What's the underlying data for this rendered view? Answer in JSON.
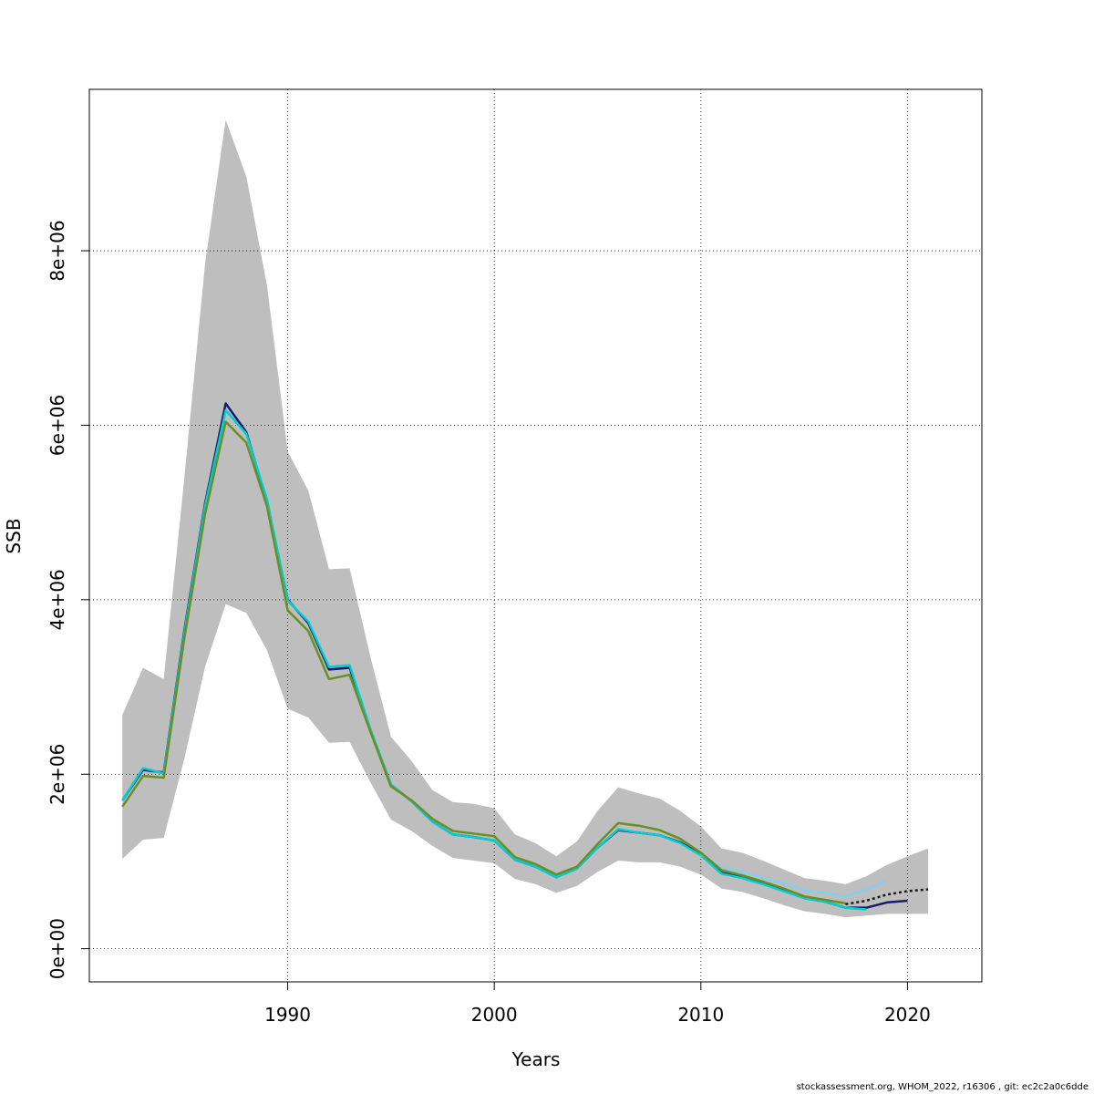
{
  "chart_data": {
    "type": "line",
    "xlabel": "Years",
    "ylabel": "SSB",
    "xlim": [
      1980.4,
      2023.6
    ],
    "ylim": [
      -380000,
      9850000
    ],
    "x_ticks": [
      1990,
      2000,
      2010,
      2020
    ],
    "x_tick_labels": [
      "1990",
      "2000",
      "2010",
      "2020"
    ],
    "y_ticks": [
      0,
      2000000,
      4000000,
      6000000,
      8000000
    ],
    "y_tick_labels": [
      "0e+00",
      "2e+06",
      "4e+06",
      "6e+06",
      "8e+06"
    ],
    "grid": true,
    "band": {
      "years": [
        1982,
        1983,
        1984,
        1985,
        1986,
        1987,
        1988,
        1989,
        1990,
        1991,
        1992,
        1993,
        1994,
        1995,
        1996,
        1997,
        1998,
        1999,
        2000,
        2001,
        2002,
        2003,
        2004,
        2005,
        2006,
        2007,
        2008,
        2009,
        2010,
        2011,
        2012,
        2013,
        2014,
        2015,
        2016,
        2017,
        2018,
        2019,
        2020,
        2021
      ],
      "upper": [
        2680000,
        3220000,
        3090000,
        5400000,
        7850000,
        9500000,
        8850000,
        7600000,
        5700000,
        5250000,
        4350000,
        4360000,
        3350000,
        2430000,
        2150000,
        1820000,
        1680000,
        1660000,
        1610000,
        1310000,
        1210000,
        1060000,
        1230000,
        1580000,
        1850000,
        1780000,
        1720000,
        1580000,
        1400000,
        1150000,
        1100000,
        1010000,
        910000,
        810000,
        780000,
        740000,
        830000,
        960000,
        1060000,
        1150000
      ],
      "lower": [
        1030000,
        1250000,
        1270000,
        2180000,
        3230000,
        3950000,
        3850000,
        3420000,
        2750000,
        2650000,
        2360000,
        2370000,
        1910000,
        1480000,
        1350000,
        1180000,
        1040000,
        1010000,
        980000,
        800000,
        740000,
        640000,
        720000,
        880000,
        1010000,
        990000,
        990000,
        940000,
        850000,
        690000,
        650000,
        580000,
        500000,
        430000,
        400000,
        360000,
        380000,
        400000,
        400000,
        400000
      ]
    },
    "band_color": "#bebebe",
    "series": [
      {
        "color": "#191970",
        "years": [
          1982,
          1983,
          1984,
          1985,
          1986,
          1987,
          1988,
          1989,
          1990,
          1991,
          1992,
          1993,
          1994,
          1995,
          1996,
          1997,
          1998,
          1999,
          2000,
          2001,
          2002,
          2003,
          2004,
          2005,
          2006,
          2007,
          2008,
          2009,
          2010,
          2011,
          2012,
          2013,
          2014,
          2015,
          2016,
          2017,
          2018,
          2019,
          2020
        ],
        "values": [
          1700000,
          2050000,
          2020000,
          3650000,
          5100000,
          6250000,
          5920000,
          5120000,
          4000000,
          3730000,
          3200000,
          3220000,
          2510000,
          1880000,
          1690000,
          1460000,
          1310000,
          1280000,
          1240000,
          1020000,
          940000,
          820000,
          920000,
          1160000,
          1360000,
          1330000,
          1300000,
          1220000,
          1080000,
          870000,
          820000,
          750000,
          670000,
          580000,
          540000,
          470000,
          470000,
          530000,
          550000
        ]
      },
      {
        "color": "#00ced1",
        "years": [
          1982,
          1983,
          1984,
          1985,
          1986,
          1987,
          1988,
          1989,
          1990,
          1991,
          1992,
          1993,
          1994,
          1995,
          1996,
          1997,
          1998,
          1999,
          2000,
          2001,
          2002,
          2003,
          2004,
          2005,
          2006,
          2007,
          2008,
          2009,
          2010,
          2011,
          2012,
          2013,
          2014,
          2015,
          2016,
          2017,
          2018
        ],
        "values": [
          1700000,
          2070000,
          2010000,
          3620000,
          5070000,
          6170000,
          5900000,
          5150000,
          3990000,
          3750000,
          3230000,
          3250000,
          2520000,
          1880000,
          1690000,
          1460000,
          1310000,
          1280000,
          1240000,
          1020000,
          940000,
          820000,
          920000,
          1160000,
          1370000,
          1330000,
          1300000,
          1210000,
          1070000,
          860000,
          810000,
          740000,
          660000,
          580000,
          540000,
          470000,
          450000
        ]
      },
      {
        "color": "#87ceeb",
        "years": [
          2010,
          2011,
          2012,
          2013,
          2014,
          2015,
          2016,
          2017,
          2018,
          2019
        ],
        "values": [
          1090000,
          930000,
          880000,
          810000,
          750000,
          670000,
          640000,
          600000,
          680000,
          780000
        ]
      },
      {
        "color": "#6b8e23",
        "years": [
          1982,
          1983,
          1984,
          1985,
          1986,
          1987,
          1988,
          1989,
          1990,
          1991,
          1992,
          1993,
          1994,
          1995,
          1996,
          1997,
          1998,
          1999,
          2000,
          2001,
          2002,
          2003,
          2004,
          2005,
          2006,
          2007,
          2008,
          2009,
          2010,
          2011,
          2012,
          2013,
          2014,
          2015,
          2016,
          2017
        ],
        "values": [
          1630000,
          1980000,
          1960000,
          3560000,
          4980000,
          6040000,
          5800000,
          5070000,
          3880000,
          3640000,
          3090000,
          3140000,
          2490000,
          1860000,
          1700000,
          1490000,
          1350000,
          1320000,
          1290000,
          1050000,
          970000,
          850000,
          940000,
          1200000,
          1440000,
          1410000,
          1360000,
          1260000,
          1100000,
          900000,
          840000,
          770000,
          690000,
          600000,
          560000,
          520000
        ]
      },
      {
        "color": "#1a1a1a",
        "dashed": true,
        "years": [
          2017,
          2018,
          2019,
          2020,
          2021
        ],
        "values": [
          510000,
          550000,
          620000,
          660000,
          680000
        ]
      }
    ]
  },
  "footer": "stockassessment.org, WHOM_2022, r16306 , git: ec2c2a0c6dde"
}
